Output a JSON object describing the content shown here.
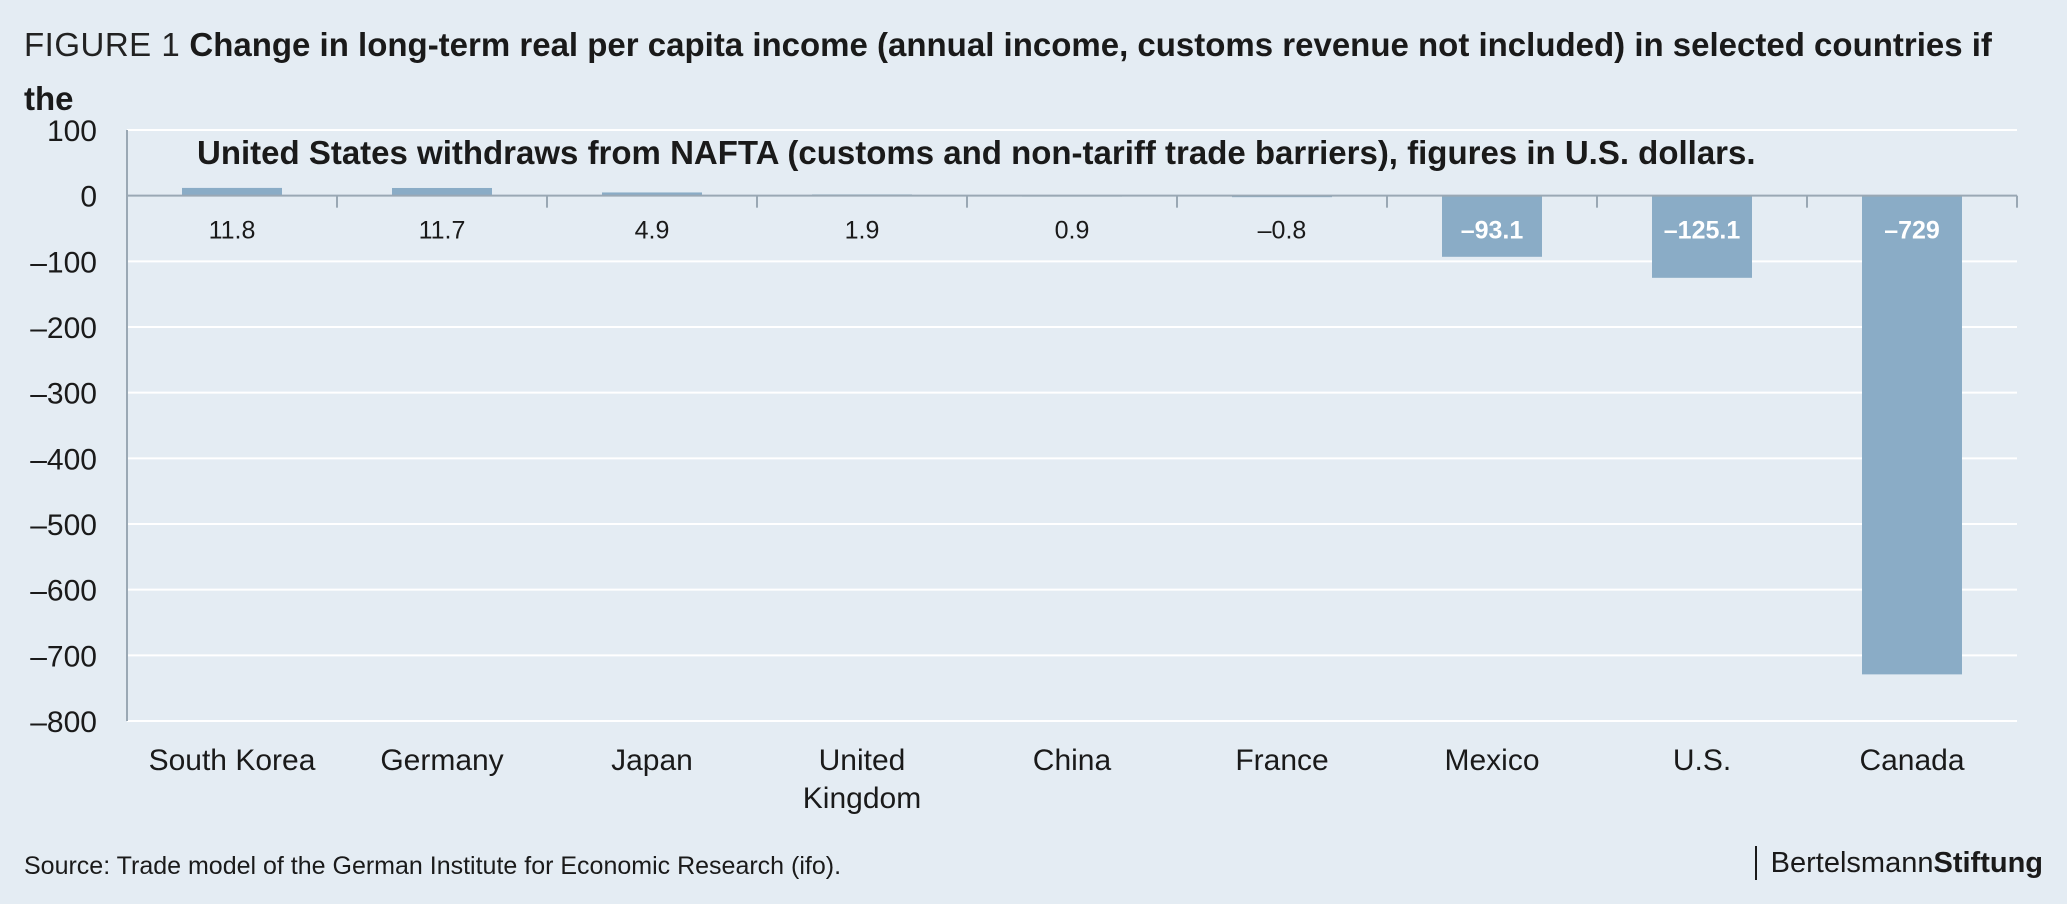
{
  "figure": {
    "label": "FIGURE 1",
    "title_line1": "Change in long-term real per capita income (annual income, customs revenue not included) in selected countries if the",
    "title_line2": "United States withdraws from NAFTA (customs and non-tariff trade barriers), figures in U.S. dollars."
  },
  "chart_data": {
    "type": "bar",
    "categories": [
      "South Korea",
      "Germany",
      "Japan",
      "United Kingdom",
      "China",
      "France",
      "Mexico",
      "U.S.",
      "Canada"
    ],
    "category_lines": [
      [
        "South Korea"
      ],
      [
        "Germany"
      ],
      [
        "Japan"
      ],
      [
        "United",
        "Kingdom"
      ],
      [
        "China"
      ],
      [
        "France"
      ],
      [
        "Mexico"
      ],
      [
        "U.S."
      ],
      [
        "Canada"
      ]
    ],
    "values": [
      11.8,
      11.7,
      4.9,
      1.9,
      0.9,
      -0.8,
      -93.1,
      -125.1,
      -729
    ],
    "data_labels": [
      "11.8",
      "11.7",
      "4.9",
      "1.9",
      "0.9",
      "–0.8",
      "–93.1",
      "–125.1",
      "–729"
    ],
    "ylim": [
      -800,
      100
    ],
    "yticks": [
      100,
      0,
      -100,
      -200,
      -300,
      -400,
      -500,
      -600,
      -700,
      -800
    ],
    "ytick_labels": [
      "100",
      "0",
      "–100",
      "–200",
      "–300",
      "–400",
      "–500",
      "–600",
      "–700",
      "–800"
    ],
    "grid": true,
    "bar_color": "#8aacc6",
    "grid_color": "#ffffff"
  },
  "footer": {
    "source": "Source: Trade model of the German Institute for Economic Research (ifo).",
    "brand_regular": "Bertelsmann",
    "brand_bold": "Stiftung"
  }
}
